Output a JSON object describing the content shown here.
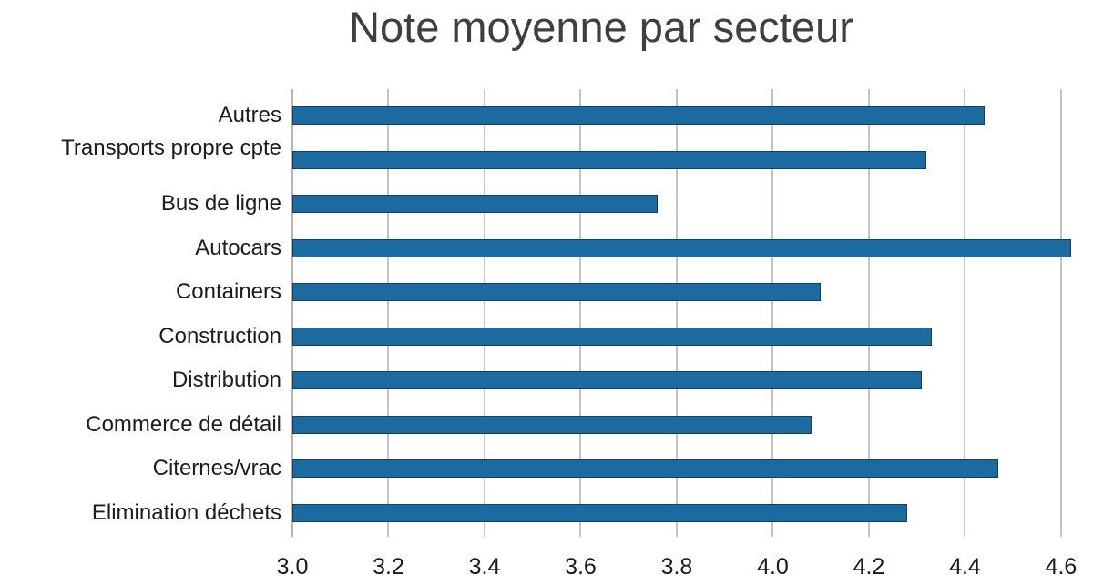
{
  "title": "Note moyenne par secteur",
  "colors": {
    "bar_fill": "#1C6BA0",
    "bar_border": "#123F63",
    "gridline": "#CBC2BD",
    "axis_line": "#BCB3AE",
    "title_text": "#3F3F3F",
    "category_text": "#1C1C1C",
    "tick_text": "#1A1A1A",
    "background": "#FFFFFF"
  },
  "chart_data": {
    "type": "bar",
    "orientation": "horizontal",
    "title": "Note moyenne par secteur",
    "categories": [
      "Autres",
      "Transports propre cpte",
      "Bus de ligne",
      "Autocars",
      "Containers",
      "Construction",
      "Distribution",
      "Commerce de détail",
      "Citernes/vrac",
      "Elimination déchets"
    ],
    "values": [
      4.44,
      4.32,
      3.76,
      4.62,
      4.1,
      4.33,
      4.31,
      4.08,
      4.47,
      4.28
    ],
    "xlabel": "",
    "ylabel": "",
    "xlim": [
      3.0,
      4.638
    ],
    "xticks": [
      3.0,
      3.2,
      3.4,
      3.6,
      3.8,
      4.0,
      4.2,
      4.4,
      4.6
    ],
    "xtick_labels": [
      "3.0",
      "3.2",
      "3.4",
      "3.6",
      "3.8",
      "4.0",
      "4.2",
      "4.4",
      "4.6"
    ],
    "grid": true,
    "legend": false
  }
}
